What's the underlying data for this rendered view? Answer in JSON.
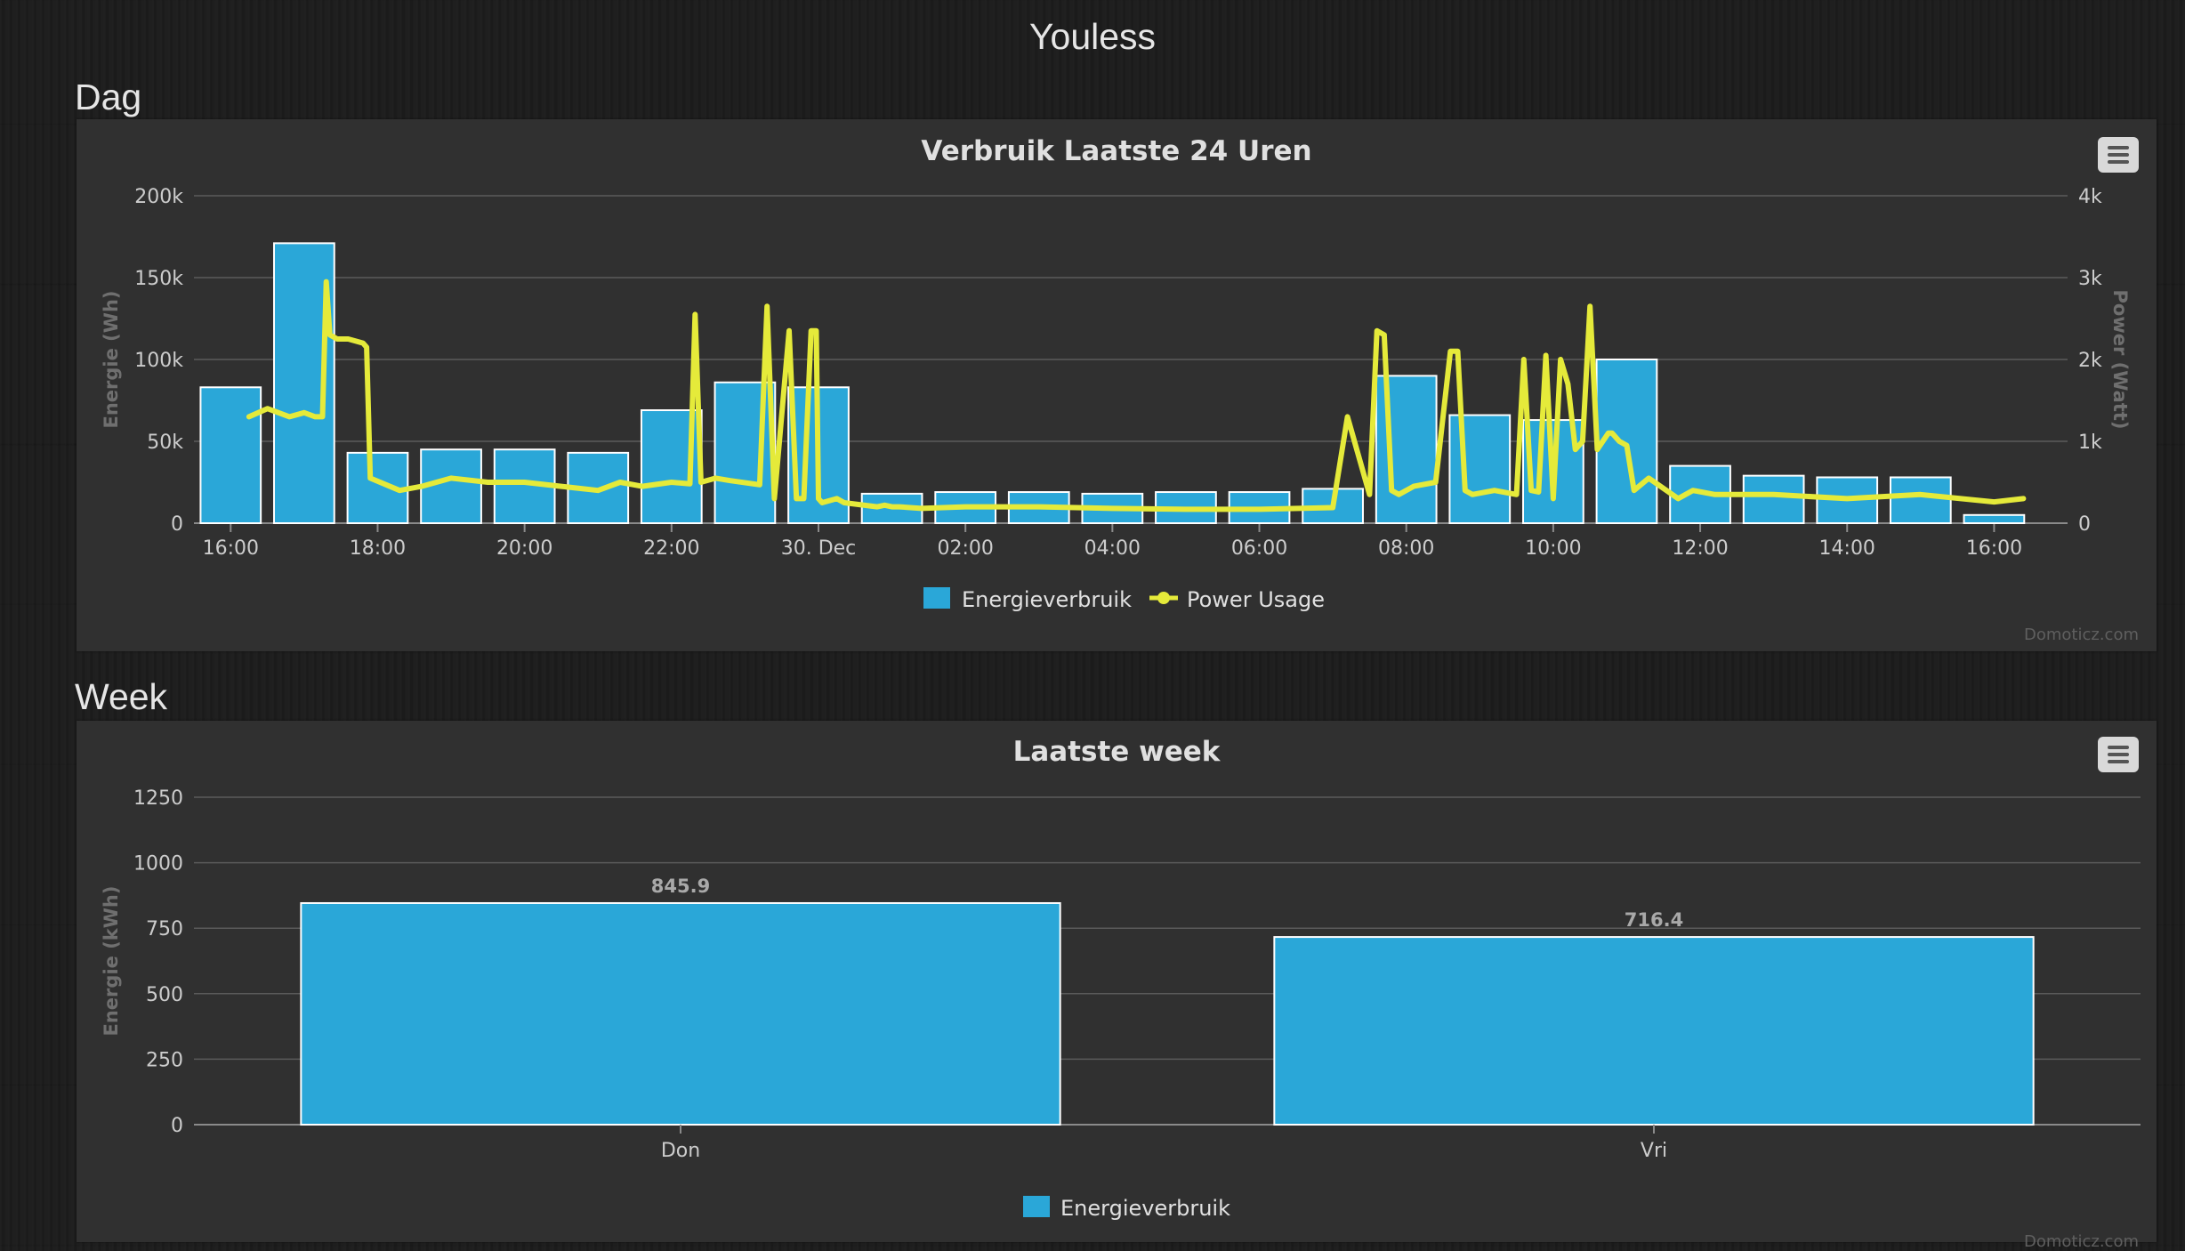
{
  "page": {
    "title": "Youless"
  },
  "sections": [
    {
      "heading": "Dag",
      "credit": "Domoticz.com"
    },
    {
      "heading": "Week",
      "credit": "Domoticz.com"
    }
  ],
  "colors": {
    "bar": "#2aa7d8",
    "line": "#e5ea3a",
    "grid": "#5a5a5a"
  },
  "icons": {
    "menu": "hamburger-menu-icon"
  },
  "chart_data": [
    {
      "type": "bar",
      "title": "Verbruik Laatste 24 Uren",
      "x_ticks": [
        "16:00",
        "18:00",
        "20:00",
        "22:00",
        "30. Dec",
        "02:00",
        "04:00",
        "06:00",
        "08:00",
        "10:00",
        "12:00",
        "14:00",
        "16:00"
      ],
      "yaxes": [
        {
          "title": "Energie (Wh)",
          "ticks": [
            "0",
            "50k",
            "100k",
            "150k",
            "200k"
          ],
          "range": [
            0,
            200000
          ]
        },
        {
          "title": "Power (Watt)",
          "ticks": [
            "0",
            "1k",
            "2k",
            "3k",
            "4k"
          ],
          "range": [
            0,
            4000
          ]
        }
      ],
      "legend": [
        "Energieverbruik",
        "Power Usage"
      ],
      "legend_position": "bottom-center",
      "grid": true,
      "series": [
        {
          "name": "Energieverbruik",
          "type": "bar",
          "x_hours": [
            16,
            17,
            18,
            19,
            20,
            21,
            22,
            23,
            0,
            1,
            2,
            3,
            4,
            5,
            6,
            7,
            8,
            9,
            10,
            11,
            12,
            13,
            14,
            15,
            16
          ],
          "values": [
            83000,
            171000,
            43000,
            45000,
            45000,
            43000,
            69000,
            86000,
            83000,
            18000,
            19000,
            19000,
            18000,
            19000,
            19000,
            21000,
            90000,
            66000,
            63000,
            100000,
            35000,
            29000,
            28000,
            28000,
            5000
          ]
        },
        {
          "name": "Power Usage",
          "type": "line",
          "color": "#e5ea3a",
          "x_hours": [
            16.25,
            16.5,
            16.8,
            17.0,
            17.15,
            17.25,
            17.3,
            17.35,
            17.45,
            17.6,
            17.8,
            17.85,
            17.9,
            18.3,
            18.6,
            19,
            19.5,
            20,
            20.5,
            21,
            21.3,
            21.6,
            22,
            22.25,
            22.32,
            22.4,
            22.6,
            22.8,
            23.2,
            23.3,
            23.4,
            23.6,
            23.7,
            23.8,
            23.9,
            23.97,
            24.0,
            24.05,
            24.25,
            24.35,
            24.8,
            24.9,
            25.0,
            25.1,
            25.4,
            26,
            27,
            28,
            29,
            30,
            31,
            31.2,
            31.5,
            31.6,
            31.7,
            31.8,
            31.9,
            32.1,
            32.4,
            32.6,
            32.7,
            32.8,
            32.9,
            33.2,
            33.5,
            33.6,
            33.7,
            33.8,
            33.9,
            34.0,
            34.1,
            34.2,
            34.3,
            34.4,
            34.5,
            34.6,
            34.75,
            34.8,
            34.85,
            34.9,
            35.0,
            35.1,
            35.3,
            35.7,
            35.9,
            36.2,
            37,
            38,
            39,
            40,
            40.4
          ],
          "values": [
            1300,
            1400,
            1300,
            1350,
            1300,
            1300,
            2950,
            2300,
            2250,
            2250,
            2200,
            2150,
            550,
            400,
            450,
            550,
            500,
            500,
            450,
            400,
            500,
            450,
            500,
            480,
            2550,
            500,
            550,
            520,
            470,
            2650,
            300,
            2350,
            300,
            300,
            2350,
            2350,
            300,
            250,
            300,
            250,
            200,
            220,
            200,
            200,
            180,
            200,
            200,
            180,
            170,
            170,
            190,
            1300,
            350,
            2350,
            2300,
            400,
            350,
            450,
            500,
            2100,
            2100,
            400,
            350,
            400,
            350,
            2000,
            400,
            380,
            2050,
            300,
            2000,
            1700,
            900,
            1000,
            2650,
            900,
            1100,
            1100,
            1050,
            1000,
            950,
            400,
            550,
            300,
            400,
            350,
            350,
            300,
            350,
            260,
            300
          ]
        }
      ]
    },
    {
      "type": "bar",
      "title": "Laatste week",
      "categories": [
        "Don",
        "Vri"
      ],
      "values": [
        845.9,
        716.4
      ],
      "data_labels": [
        "845.9",
        "716.4"
      ],
      "yaxis": {
        "title": "Energie (kWh)",
        "ticks": [
          "0",
          "250",
          "500",
          "750",
          "1000",
          "1250"
        ],
        "range": [
          0,
          1250
        ]
      },
      "legend": [
        "Energieverbruik"
      ],
      "legend_position": "bottom-center",
      "grid": true,
      "series": [
        {
          "name": "Energieverbruik",
          "values": [
            845.9,
            716.4
          ]
        }
      ]
    }
  ]
}
